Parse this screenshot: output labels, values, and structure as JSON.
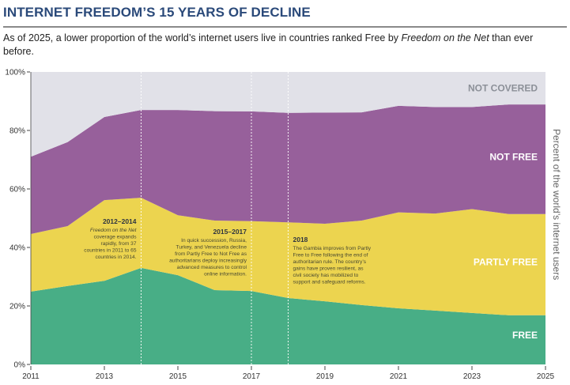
{
  "header": {
    "title": "INTERNET FREEDOM’S 15 YEARS OF DECLINE",
    "subtitle_pre": "As of 2025, a lower proportion of the world’s internet users live in countries ranked Free by ",
    "subtitle_italic": "Freedom on the Net",
    "subtitle_post": " than ever before."
  },
  "chart_data": {
    "type": "area",
    "stacked": true,
    "title": "INTERNET FREEDOM’S 15 YEARS OF DECLINE",
    "xlabel": "",
    "ylabel": "Percent of the world’s internet users",
    "x": [
      2011,
      2012,
      2013,
      2014,
      2015,
      2016,
      2017,
      2018,
      2019,
      2020,
      2021,
      2022,
      2023,
      2024,
      2025
    ],
    "xticks": [
      "2011",
      "2013",
      "2015",
      "2017",
      "2019",
      "2021",
      "2023",
      "2025"
    ],
    "xtick_values": [
      2011,
      2013,
      2015,
      2017,
      2019,
      2021,
      2023,
      2025
    ],
    "yticks": [
      "0%",
      "20%",
      "40%",
      "60%",
      "80%",
      "100%"
    ],
    "ytick_values": [
      0,
      20,
      40,
      60,
      80,
      100
    ],
    "xlim": [
      2011,
      2025
    ],
    "ylim": [
      0,
      100
    ],
    "grid": false,
    "series": [
      {
        "name": "FREE",
        "color": "#48ae86",
        "label_color": "#ffffff",
        "values": [
          24.9,
          26.8,
          28.6,
          33.0,
          30.5,
          25.4,
          25.1,
          22.7,
          21.6,
          20.3,
          19.2,
          18.4,
          17.6,
          16.8,
          16.8
        ]
      },
      {
        "name": "PARTLY FREE",
        "color": "#ecd44f",
        "label_color": "#ffffff",
        "values": [
          19.7,
          20.5,
          27.6,
          24.0,
          20.5,
          23.8,
          23.9,
          25.9,
          26.5,
          28.9,
          32.8,
          33.2,
          35.5,
          34.6,
          34.6
        ]
      },
      {
        "name": "NOT FREE",
        "color": "#97609b",
        "label_color": "#ffffff",
        "values": [
          26.4,
          28.7,
          28.4,
          30.0,
          36.0,
          37.4,
          37.5,
          37.4,
          38.0,
          37.0,
          36.4,
          36.4,
          34.9,
          37.5,
          37.5
        ]
      },
      {
        "name": "NOT COVERED",
        "color": "#e1e1e8",
        "label_color": "#8c9098",
        "values": [
          29.0,
          24.0,
          15.4,
          13.0,
          13.0,
          13.4,
          13.5,
          14.0,
          13.9,
          13.8,
          11.6,
          12.0,
          12.0,
          11.1,
          11.1
        ]
      }
    ],
    "annotations": [
      {
        "x": 2014,
        "title": "2012–2014",
        "lines": [
          "Freedom on the Net",
          "coverage expands",
          "rapidly, from 37",
          "countries in 2011 to 65",
          "countries in 2014."
        ],
        "italic_lines": 1
      },
      {
        "x": 2017,
        "title": "2015–2017",
        "lines": [
          "In quick succession, Russia,",
          "Turkey, and Venezuela decline",
          "from Partly Free to Not Free as",
          "authoritarians deploy increasingly",
          "advanced measures to control",
          "online information."
        ],
        "italic_lines": 0
      },
      {
        "x": 2018,
        "title": "2018",
        "lines": [
          "The Gambia improves from Partly",
          "Free to Free following the end of",
          "authoritarian rule. The country’s",
          "gains have proven resilient, as",
          "civil society has mobilized to",
          "support and safeguard reforms."
        ],
        "italic_lines": 0
      }
    ],
    "legend": "inline-right"
  }
}
